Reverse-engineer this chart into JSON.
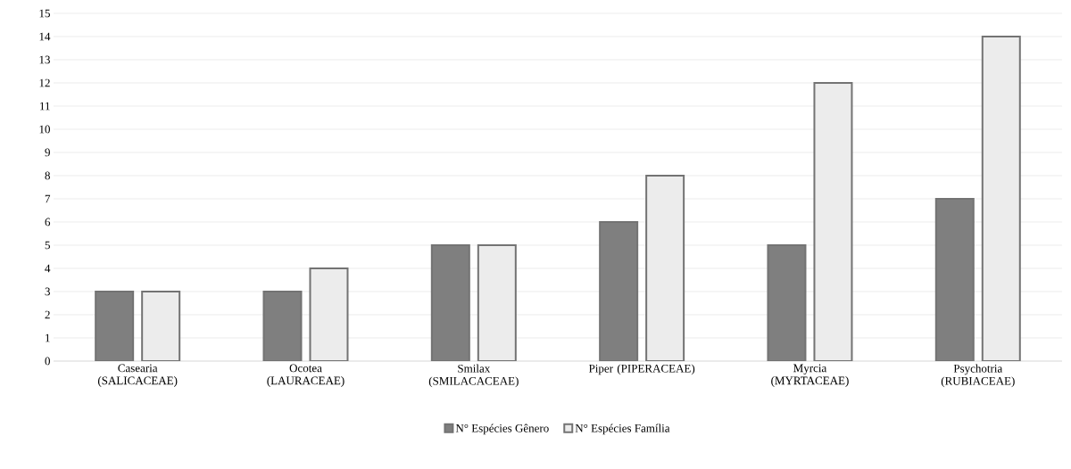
{
  "chart_data": {
    "type": "bar",
    "categories": [
      "Casearia (SALICACEAE)",
      "Ocotea (LAURACEAE)",
      "Smilax (SMILACACEAE)",
      "Piper (PIPERACEAE)",
      "Myrcia (MYRTACEAE)",
      "Psychotria (RUBIACEAE)"
    ],
    "series": [
      {
        "name": "N° Espécies Gênero",
        "color": "#7f7f7f",
        "values": [
          3,
          3,
          5,
          6,
          5,
          7
        ]
      },
      {
        "name": "N° Espécies Família",
        "color": "#ececec",
        "values": [
          3,
          4,
          5,
          8,
          12,
          14
        ]
      }
    ],
    "ylim": [
      0,
      15
    ],
    "yticks": [
      0,
      1,
      2,
      3,
      4,
      5,
      6,
      7,
      8,
      9,
      10,
      11,
      12,
      13,
      14,
      15
    ],
    "grid": "y",
    "legend": "bottom"
  }
}
